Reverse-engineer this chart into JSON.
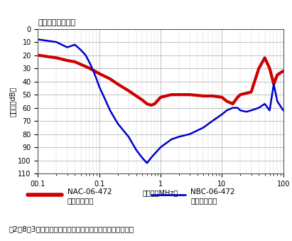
{
  "title": "〔コモンモード〕",
  "xlabel": "周波数［MHz］",
  "ylabel": "減衰量［dB］",
  "xmin": 0.01,
  "xmax": 100,
  "ymin": 0,
  "ymax": 110,
  "yticks": [
    0,
    10,
    20,
    30,
    40,
    50,
    60,
    70,
    80,
    90,
    100,
    110
  ],
  "caption": "図2．8．3　１段フィルタと２段フィルタの減衰特性比較例",
  "legend1_label": "NAC-06-472\n１段フィルタ",
  "legend2_label": "NBC-06-472\n２段フィルタ",
  "red_color": "#cc0000",
  "blue_color": "#0000cc",
  "red_x": [
    0.01,
    0.02,
    0.03,
    0.04,
    0.05,
    0.07,
    0.1,
    0.15,
    0.2,
    0.3,
    0.5,
    0.6,
    0.7,
    0.8,
    1.0,
    1.5,
    2.0,
    3.0,
    5.0,
    7.0,
    10.0,
    12.0,
    15.0,
    18.0,
    20.0,
    30.0,
    40.0,
    50.0,
    60.0,
    70.0,
    80.0,
    100.0
  ],
  "red_y": [
    20,
    22,
    24,
    25,
    27,
    30,
    34,
    38,
    42,
    47,
    54,
    57,
    58,
    57,
    52,
    50,
    50,
    50,
    51,
    51,
    52,
    55,
    57,
    52,
    50,
    48,
    30,
    22,
    30,
    42,
    35,
    32
  ],
  "blue_x": [
    0.01,
    0.02,
    0.03,
    0.04,
    0.05,
    0.06,
    0.07,
    0.08,
    0.09,
    0.1,
    0.12,
    0.15,
    0.2,
    0.3,
    0.4,
    0.5,
    0.6,
    0.7,
    0.8,
    1.0,
    1.5,
    2.0,
    3.0,
    5.0,
    7.0,
    10.0,
    12.0,
    15.0,
    18.0,
    20.0,
    25.0,
    30.0,
    40.0,
    50.0,
    60.0,
    70.0,
    80.0,
    100.0
  ],
  "blue_y": [
    8,
    10,
    14,
    12,
    16,
    20,
    26,
    32,
    38,
    44,
    52,
    62,
    72,
    82,
    92,
    98,
    102,
    98,
    95,
    90,
    84,
    82,
    80,
    75,
    70,
    65,
    62,
    60,
    60,
    62,
    63,
    62,
    60,
    57,
    62,
    42,
    55,
    62
  ]
}
